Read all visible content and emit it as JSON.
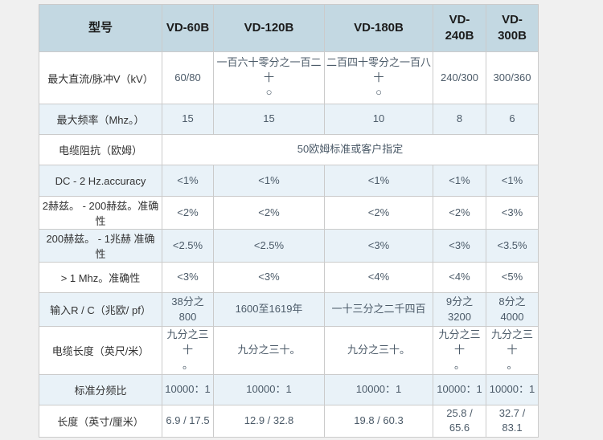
{
  "table": {
    "header": {
      "model_label": "型号",
      "models": [
        "VD-60B",
        "VD-120B",
        "VD-180B",
        "VD-240B",
        "VD-300B"
      ]
    },
    "rows": [
      {
        "label": "最大直流/脉冲V（kV）",
        "values": [
          "60/80",
          "一百六十零分之一百二十\n○",
          "二百四十零分之一百八十\n○",
          "240/300",
          "300/360"
        ]
      },
      {
        "label": "最大频率（Mhz。）",
        "values": [
          "15",
          "15",
          "10",
          "8",
          "6"
        ]
      },
      {
        "label": "电缆阻抗（欧姆）",
        "span_value": "50欧姆标准或客户指定"
      },
      {
        "label": "DC - 2 Hz.accuracy",
        "values": [
          "<1%",
          "<1%",
          "<1%",
          "<1%",
          "<1%"
        ]
      },
      {
        "label": "2赫兹。 - 200赫兹。准确性",
        "values": [
          "<2%",
          "<2%",
          "<2%",
          "<2%",
          "<3%"
        ]
      },
      {
        "label": "200赫兹。 - 1兆赫 准确性",
        "values": [
          "<2.5%",
          "<2.5%",
          "<3%",
          "<3%",
          "<3.5%"
        ]
      },
      {
        "label": "> 1 Mhz。准确性",
        "values": [
          "<3%",
          "<3%",
          "<4%",
          "<4%",
          "<5%"
        ]
      },
      {
        "label": "输入R / C（兆欧/ pf）",
        "values": [
          "38分之800",
          "1600至1619年",
          "一十三分之二千四百",
          "9分之3200",
          "8分之4000"
        ]
      },
      {
        "label": "电缆长度（英尺/米）",
        "values": [
          "九分之三十\n。",
          "九分之三十。",
          "九分之三十。",
          "九分之三十\n。",
          "九分之三十\n。"
        ]
      },
      {
        "label": "标准分频比",
        "values": [
          "10000：1",
          "10000：1",
          "10000：1",
          "10000：1",
          "10000：1"
        ]
      },
      {
        "label": "长度（英寸/厘米）",
        "values": [
          "6.9 / 17.5",
          "12.9 / 32.8",
          "19.8 / 60.3",
          "25.8 / 65.6",
          "32.7 / 83.1"
        ]
      }
    ],
    "colors": {
      "page_bg": "#f0f0f0",
      "header_bg": "#c3d8e2",
      "row_tint_bg": "#e9f2f8",
      "row_plain_bg": "#ffffff",
      "border": "#cbcbcb",
      "header_divider": "#a6bac3",
      "header_text": "#1c1c1c",
      "label_text": "#333333",
      "value_text": "#4b5a68"
    }
  }
}
